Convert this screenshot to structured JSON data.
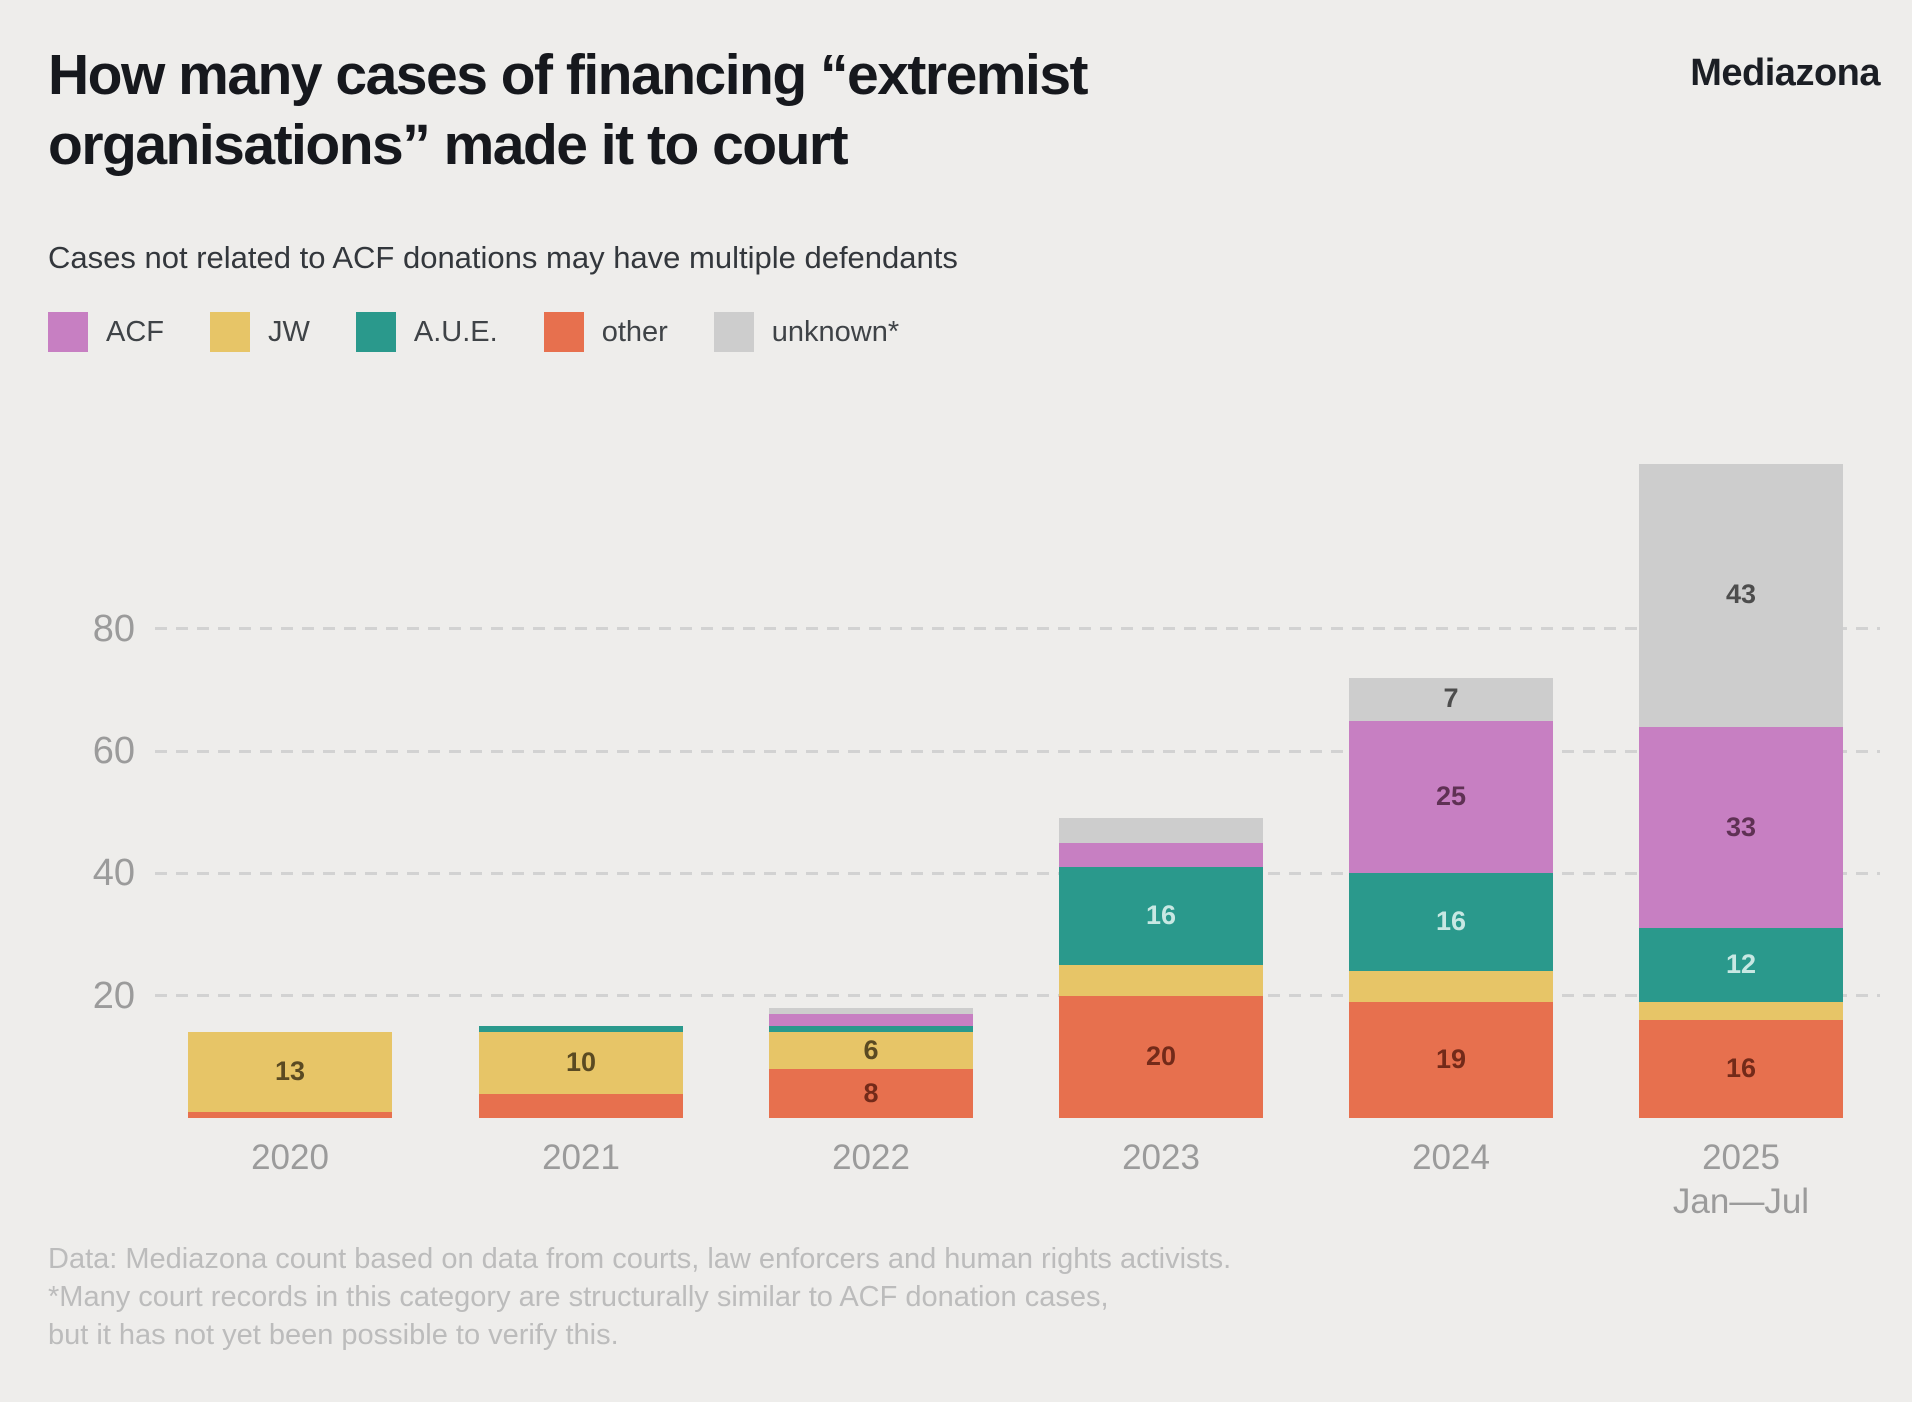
{
  "logo": "Mediazona",
  "title_lines": [
    "How many cases of financing “extremist",
    "organisations” made it to court"
  ],
  "subtitle": "Cases not related to ACF donations may have multiple defendants",
  "legend": [
    {
      "label": "ACF",
      "color": "#c77fc2"
    },
    {
      "label": "JW",
      "color": "#e7c567"
    },
    {
      "label": "A.U.E.",
      "color": "#2a998c"
    },
    {
      "label": "other",
      "color": "#e7704e"
    },
    {
      "label": "unknown*",
      "color": "#cdcdcd"
    }
  ],
  "chart_data": {
    "type": "bar",
    "stacked": true,
    "categories": [
      "2020",
      "2021",
      "2022",
      "2023",
      "2024",
      "2025"
    ],
    "category_sublabels": [
      "",
      "",
      "",
      "",
      "",
      "Jan—Jul"
    ],
    "series": [
      {
        "name": "other",
        "color": "#e7704e",
        "label_color": "#732a19",
        "values": [
          1,
          4,
          8,
          20,
          19,
          16
        ]
      },
      {
        "name": "JW",
        "color": "#e7c567",
        "label_color": "#5a4a22",
        "values": [
          13,
          10,
          6,
          5,
          5,
          3
        ]
      },
      {
        "name": "A.U.E.",
        "color": "#2a998c",
        "label_color": "#c8e8e3",
        "values": [
          0,
          1,
          1,
          16,
          16,
          12
        ]
      },
      {
        "name": "ACF",
        "color": "#c77fc2",
        "label_color": "#5f3154",
        "values": [
          0,
          0,
          2,
          4,
          25,
          33
        ]
      },
      {
        "name": "unknown*",
        "color": "#cdcdcd",
        "label_color": "#4d4d4d",
        "values": [
          0,
          0,
          1,
          4,
          7,
          43
        ]
      }
    ],
    "totals": [
      14,
      15,
      18,
      49,
      72,
      107
    ],
    "y_ticks": [
      20,
      40,
      60,
      80
    ],
    "ylim": [
      0,
      107
    ],
    "grid": "horizontal-dashed",
    "legend_position": "top-left",
    "label_min_value": 6,
    "axis_text_color": "#9b9b9b",
    "gridline_color": "#d2d2d2",
    "background_color": "#eeedeb"
  },
  "footer": {
    "lines": [
      "Data: Mediazona count based on data from courts, law enforcers and human rights activists.",
      "*Many court records in this category are structurally similar to ACF donation cases,",
      "but it has not yet been possible to verify this."
    ]
  }
}
